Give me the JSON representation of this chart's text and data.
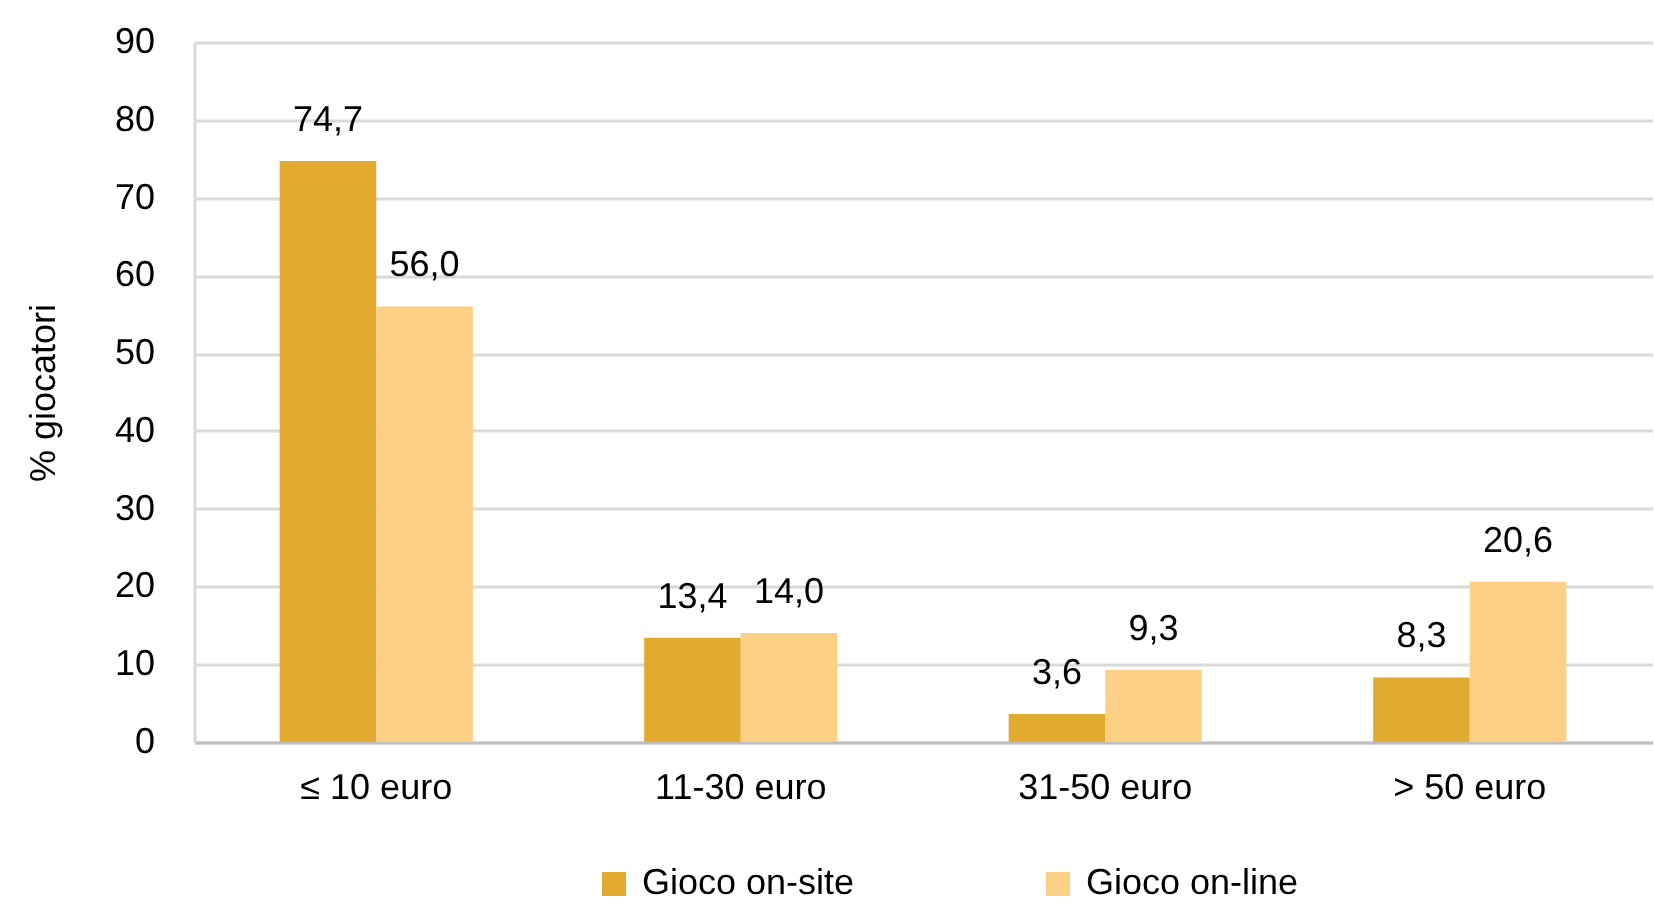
{
  "chart_data": {
    "type": "bar",
    "ylabel": "% giocatori",
    "categories": [
      "≤ 10 euro",
      "11-30 euro",
      "31-50 euro",
      "> 50 euro"
    ],
    "series": [
      {
        "name": "Gioco on-site",
        "color": "#e2ab2f",
        "values": [
          74.7,
          13.4,
          3.6,
          8.3
        ],
        "value_labels": [
          "74,7",
          "13,4",
          "3,6",
          "8,3"
        ]
      },
      {
        "name": "Gioco on-line",
        "color": "#fed085",
        "values": [
          56.0,
          14.0,
          9.3,
          20.6
        ],
        "value_labels": [
          "56,0",
          "14,0",
          "9,3",
          "20,6"
        ]
      }
    ],
    "ylim": [
      0,
      90
    ],
    "yticks": [
      0,
      10,
      20,
      30,
      40,
      50,
      60,
      70,
      80,
      90
    ],
    "grid": "y",
    "legend": "bottom"
  }
}
